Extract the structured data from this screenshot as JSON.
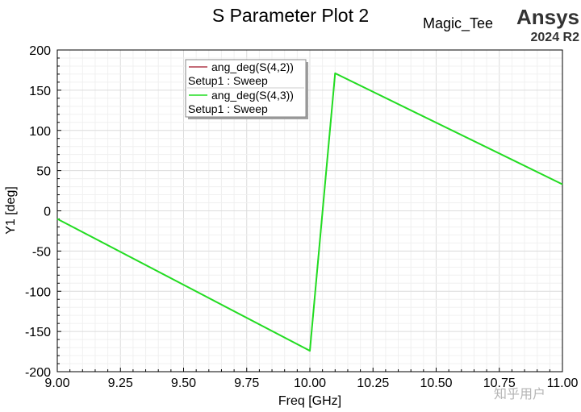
{
  "header": {
    "project": "Magic_Tee",
    "brand": "Ansys",
    "version": "2024 R2"
  },
  "watermark": "知乎用户",
  "chart_data": {
    "type": "line",
    "title": "S Parameter Plot 2",
    "xlabel": "Freq [GHz]",
    "ylabel": "Y1 [deg]",
    "xlim": [
      9.0,
      11.0
    ],
    "ylim": [
      -200,
      200
    ],
    "xticks": [
      "9.00",
      "9.25",
      "9.50",
      "9.75",
      "10.00",
      "10.25",
      "10.50",
      "10.75",
      "11.00"
    ],
    "yticks": [
      "200",
      "150",
      "100",
      "50",
      "0",
      "-50",
      "-100",
      "-150",
      "-200"
    ],
    "grid": true,
    "legend_position": "top-left",
    "series": [
      {
        "name": "ang_deg(S(4,2))",
        "setup": "Setup1 : Sweep",
        "color": "#b03a4a",
        "x": [
          9.0,
          10.0,
          10.1,
          11.0
        ],
        "y": [
          -10,
          -174,
          171,
          33
        ]
      },
      {
        "name": "ang_deg(S(4,3))",
        "setup": "Setup1 : Sweep",
        "color": "#22dd22",
        "x": [
          9.0,
          10.0,
          10.1,
          11.0
        ],
        "y": [
          -10,
          -174,
          171,
          33
        ]
      }
    ]
  }
}
